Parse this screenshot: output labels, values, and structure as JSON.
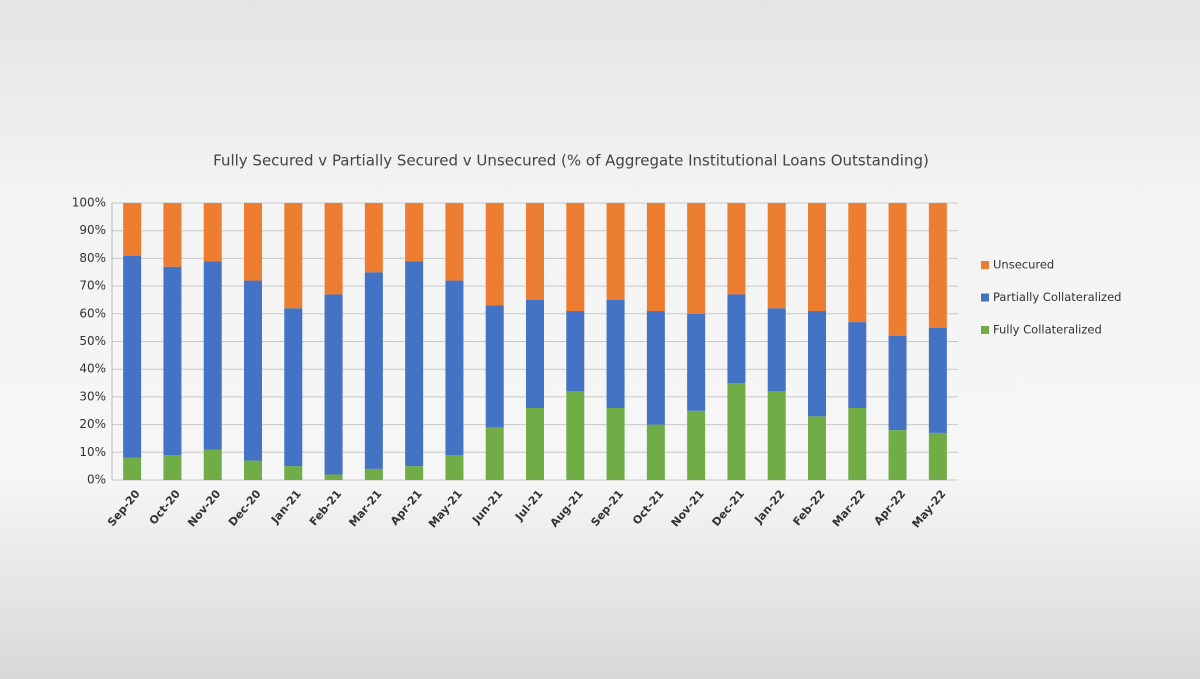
{
  "chart_data": {
    "type": "stacked_bar",
    "title": "Fully Secured v Partially Secured v Unsecured (% of Aggregate Institutional Loans Outstanding)",
    "categories": [
      "Sep-20",
      "Oct-20",
      "Nov-20",
      "Dec-20",
      "Jan-21",
      "Feb-21",
      "Mar-21",
      "Apr-21",
      "May-21",
      "Jun-21",
      "Jul-21",
      "Aug-21",
      "Sep-21",
      "Oct-21",
      "Nov-21",
      "Dec-21",
      "Jan-22",
      "Feb-22",
      "Mar-22",
      "Apr-22",
      "May-22"
    ],
    "series": [
      {
        "name": "Fully Collateralized",
        "color": "#70ad47",
        "values": [
          8,
          9,
          11,
          7,
          5,
          2,
          4,
          5,
          9,
          19,
          26,
          32,
          26,
          20,
          25,
          35,
          32,
          23,
          26,
          18,
          17
        ]
      },
      {
        "name": "Partially Collateralized",
        "color": "#4472c4",
        "values": [
          73,
          68,
          68,
          65,
          57,
          65,
          71,
          74,
          63,
          44,
          39,
          29,
          39,
          41,
          35,
          32,
          30,
          38,
          31,
          34,
          38
        ]
      },
      {
        "name": "Unsecured",
        "color": "#ed7d31",
        "values": [
          19,
          23,
          21,
          28,
          38,
          33,
          25,
          21,
          28,
          37,
          35,
          39,
          35,
          39,
          40,
          33,
          38,
          39,
          43,
          48,
          45
        ]
      }
    ],
    "ylim": [
      0,
      100
    ],
    "yticks": [
      {
        "value": 0,
        "label": "0%"
      },
      {
        "value": 10,
        "label": "10%"
      },
      {
        "value": 20,
        "label": "20%"
      },
      {
        "value": 30,
        "label": "30%"
      },
      {
        "value": 40,
        "label": "40%"
      },
      {
        "value": 50,
        "label": "50%"
      },
      {
        "value": 60,
        "label": "60%"
      },
      {
        "value": 70,
        "label": "70%"
      },
      {
        "value": 80,
        "label": "80%"
      },
      {
        "value": 90,
        "label": "90%"
      },
      {
        "value": 100,
        "label": "100%"
      }
    ],
    "grid": true,
    "legend": "right"
  }
}
